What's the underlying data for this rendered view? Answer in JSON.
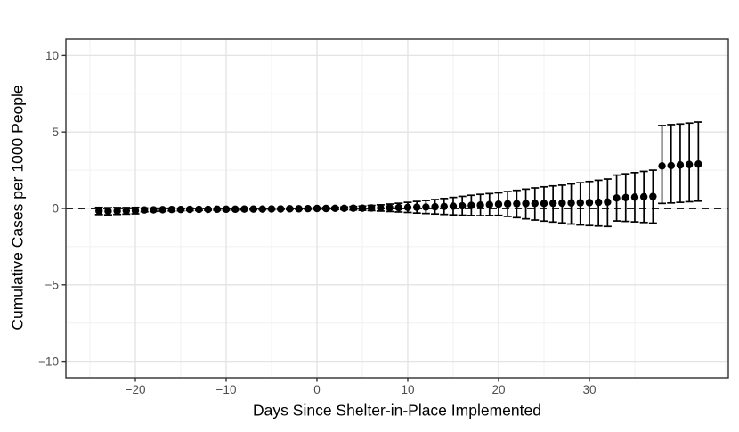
{
  "figure": {
    "xlabel": "Days Since Shelter-in-Place Implemented",
    "ylabel": "Cumulative Cases per 1000 People"
  },
  "colors": {
    "point": "#000000",
    "error_bar": "#000000",
    "reference_line": "#000000",
    "grid_major": "#e3e3e3",
    "grid_minor": "#f1f1f1",
    "panel_border": "#2f2f2f",
    "tick_mark": "#333333",
    "tick_label": "#4d4d4d",
    "background": "#ffffff"
  },
  "chart_data": {
    "type": "scatter",
    "subtype": "point-estimates-with-error-bars",
    "title": "",
    "xlabel": "Days Since Shelter-in-Place Implemented",
    "ylabel": "Cumulative Cases per 1000 People",
    "x_ticks": [
      -20,
      -10,
      0,
      10,
      20,
      30
    ],
    "y_ticks": [
      -10,
      -5,
      0,
      5,
      10
    ],
    "xlim": [
      -27.65,
      45.3
    ],
    "ylim": [
      -11.07,
      11.07
    ],
    "grid": true,
    "legend": "none",
    "reference_line_y": 0,
    "reference_line_style": "dashed",
    "columns": [
      "day",
      "estimate",
      "ci_low",
      "ci_high"
    ],
    "points": [
      [
        -24,
        -0.16,
        -0.4,
        0.07
      ],
      [
        -23,
        -0.18,
        -0.42,
        0.05
      ],
      [
        -22,
        -0.16,
        -0.39,
        0.06
      ],
      [
        -21,
        -0.15,
        -0.37,
        0.06
      ],
      [
        -20,
        -0.14,
        -0.35,
        0.07
      ],
      [
        -19,
        -0.1,
        -0.22,
        0.03
      ],
      [
        -18,
        -0.09,
        -0.19,
        0.02
      ],
      [
        -17,
        -0.08,
        -0.18,
        0.02
      ],
      [
        -16,
        -0.07,
        -0.16,
        0.02
      ],
      [
        -15,
        -0.07,
        -0.15,
        0.01
      ],
      [
        -14,
        -0.06,
        -0.14,
        0.02
      ],
      [
        -13,
        -0.06,
        -0.13,
        0.01
      ],
      [
        -12,
        -0.06,
        -0.12,
        0.01
      ],
      [
        -11,
        -0.05,
        -0.11,
        0.01
      ],
      [
        -10,
        -0.05,
        -0.11,
        0.01
      ],
      [
        -9,
        -0.05,
        -0.1,
        0.0
      ],
      [
        -8,
        -0.04,
        -0.09,
        0.01
      ],
      [
        -7,
        -0.04,
        -0.09,
        0.01
      ],
      [
        -6,
        -0.04,
        -0.08,
        0.0
      ],
      [
        -5,
        -0.03,
        -0.08,
        0.01
      ],
      [
        -4,
        -0.03,
        -0.07,
        0.01
      ],
      [
        -3,
        -0.02,
        -0.06,
        0.02
      ],
      [
        -2,
        -0.02,
        -0.05,
        0.01
      ],
      [
        -1,
        -0.01,
        -0.05,
        0.02
      ],
      [
        0,
        0.0,
        -0.05,
        0.05
      ],
      [
        1,
        0.0,
        -0.06,
        0.06
      ],
      [
        2,
        0.01,
        -0.07,
        0.08
      ],
      [
        3,
        0.01,
        -0.08,
        0.1
      ],
      [
        4,
        0.02,
        -0.1,
        0.13
      ],
      [
        5,
        0.02,
        -0.12,
        0.16
      ],
      [
        6,
        0.03,
        -0.14,
        0.2
      ],
      [
        7,
        0.04,
        -0.17,
        0.24
      ],
      [
        8,
        0.05,
        -0.2,
        0.29
      ],
      [
        9,
        0.06,
        -0.23,
        0.34
      ],
      [
        10,
        0.07,
        -0.26,
        0.4
      ],
      [
        11,
        0.08,
        -0.3,
        0.46
      ],
      [
        12,
        0.09,
        -0.33,
        0.52
      ],
      [
        13,
        0.11,
        -0.36,
        0.58
      ],
      [
        14,
        0.13,
        -0.39,
        0.65
      ],
      [
        15,
        0.15,
        -0.42,
        0.72
      ],
      [
        16,
        0.17,
        -0.44,
        0.79
      ],
      [
        17,
        0.2,
        -0.46,
        0.86
      ],
      [
        18,
        0.22,
        -0.47,
        0.92
      ],
      [
        19,
        0.25,
        -0.46,
        0.97
      ],
      [
        20,
        0.28,
        -0.45,
        1.02
      ],
      [
        21,
        0.3,
        -0.52,
        1.1
      ],
      [
        22,
        0.31,
        -0.6,
        1.18
      ],
      [
        23,
        0.32,
        -0.68,
        1.26
      ],
      [
        24,
        0.33,
        -0.76,
        1.34
      ],
      [
        25,
        0.33,
        -0.83,
        1.41
      ],
      [
        26,
        0.34,
        -0.89,
        1.47
      ],
      [
        27,
        0.35,
        -0.95,
        1.52
      ],
      [
        28,
        0.36,
        -1.02,
        1.6
      ],
      [
        29,
        0.37,
        -1.08,
        1.68
      ],
      [
        30,
        0.38,
        -1.12,
        1.76
      ],
      [
        31,
        0.4,
        -1.15,
        1.84
      ],
      [
        32,
        0.42,
        -1.18,
        1.92
      ],
      [
        33,
        0.68,
        -0.82,
        2.18
      ],
      [
        34,
        0.71,
        -0.85,
        2.26
      ],
      [
        35,
        0.74,
        -0.88,
        2.34
      ],
      [
        36,
        0.76,
        -0.92,
        2.42
      ],
      [
        37,
        0.78,
        -0.96,
        2.5
      ],
      [
        38,
        2.78,
        0.33,
        5.42
      ],
      [
        39,
        2.8,
        0.36,
        5.48
      ],
      [
        40,
        2.84,
        0.4,
        5.52
      ],
      [
        41,
        2.87,
        0.44,
        5.58
      ],
      [
        42,
        2.9,
        0.48,
        5.65
      ]
    ]
  }
}
